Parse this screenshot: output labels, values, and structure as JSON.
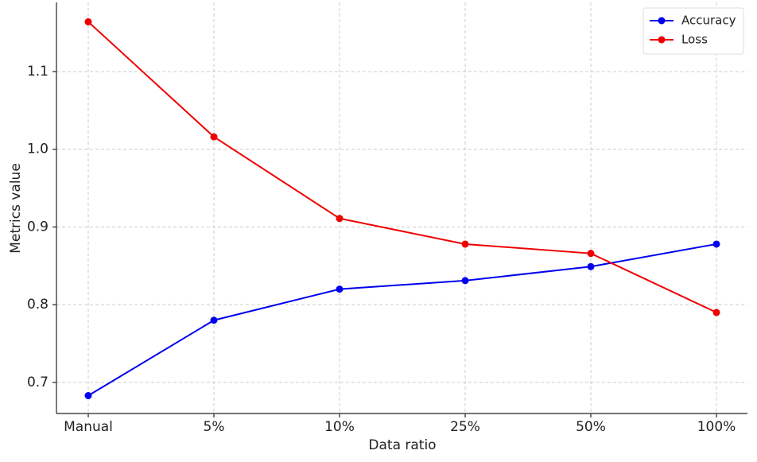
{
  "chart_data": {
    "type": "line",
    "x_label": "Data ratio",
    "y_label": "Metrics value",
    "categories": [
      "Manual",
      "5%",
      "10%",
      "25%",
      "50%",
      "100%"
    ],
    "series": [
      {
        "name": "Accuracy",
        "color": "#0000ee",
        "values": [
          0.683,
          0.78,
          0.82,
          0.831,
          0.849,
          0.878
        ]
      },
      {
        "name": "Loss",
        "color": "#ee0000",
        "values": [
          1.164,
          1.016,
          0.911,
          0.878,
          0.866,
          0.79
        ]
      }
    ],
    "ylim": [
      0.66,
      1.189
    ],
    "yticks": [
      0.7,
      0.8,
      0.9,
      {
        "value": 1,
        "label": "1.0"
      },
      1.1
    ],
    "grid": true,
    "legend": "upper right"
  }
}
